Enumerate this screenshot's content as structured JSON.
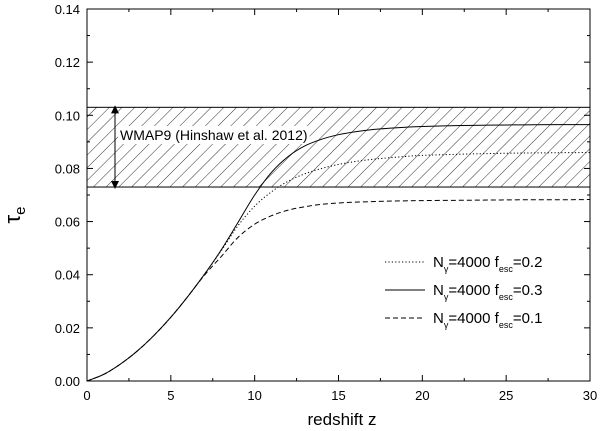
{
  "chart_data": {
    "type": "line",
    "xlabel": "redshift z",
    "ylabel": {
      "main": "τ",
      "sub": "e"
    },
    "xlim": [
      0,
      30
    ],
    "ylim": [
      0,
      0.14
    ],
    "x_ticks": [
      0,
      5,
      10,
      15,
      20,
      25,
      30
    ],
    "x_tick_labels": [
      "0",
      "5",
      "10",
      "15",
      "20",
      "25",
      "30"
    ],
    "y_ticks": [
      0,
      0.02,
      0.04,
      0.06,
      0.08,
      0.1,
      0.12,
      0.14
    ],
    "y_tick_labels": [
      "0.00",
      "0.02",
      "0.04",
      "0.06",
      "0.08",
      "0.10",
      "0.12",
      "0.14"
    ],
    "grid": false,
    "legend_placement": "bottom-right",
    "band": {
      "label": "WMAP9 (Hinshaw et al. 2012)",
      "y_range": [
        0.073,
        0.103
      ]
    },
    "series": [
      {
        "name": {
          "a": "N",
          "a_sub": "γ",
          "b": "=4000 f",
          "b_sub": "esc",
          "c": "=0.2"
        },
        "style": "dotted",
        "x": [
          0,
          1,
          2,
          3,
          4,
          5,
          6,
          7,
          8,
          9,
          10,
          11,
          12,
          13,
          14,
          15,
          16,
          17,
          18,
          19,
          20,
          22,
          24,
          26,
          28,
          30
        ],
        "y": [
          0,
          0.0025,
          0.0064,
          0.0113,
          0.0172,
          0.024,
          0.0317,
          0.0401,
          0.049,
          0.0584,
          0.0658,
          0.0712,
          0.0752,
          0.078,
          0.08,
          0.0815,
          0.0826,
          0.0834,
          0.084,
          0.0845,
          0.0849,
          0.0853,
          0.0856,
          0.0858,
          0.0859,
          0.086
        ]
      },
      {
        "name": {
          "a": "N",
          "a_sub": "γ",
          "b": "=4000 f",
          "b_sub": "esc",
          "c": "=0.3"
        },
        "style": "solid",
        "x": [
          0,
          1,
          2,
          3,
          4,
          5,
          6,
          7,
          8,
          9,
          10,
          11,
          12,
          13,
          14,
          15,
          16,
          17,
          18,
          19,
          20,
          22,
          24,
          26,
          28,
          30
        ],
        "y": [
          0,
          0.0025,
          0.0064,
          0.0113,
          0.0172,
          0.024,
          0.0317,
          0.0401,
          0.0493,
          0.0596,
          0.07,
          0.0785,
          0.0845,
          0.0885,
          0.091,
          0.0927,
          0.0938,
          0.0946,
          0.0951,
          0.0955,
          0.0958,
          0.0961,
          0.0963,
          0.0964,
          0.0965,
          0.0965
        ]
      },
      {
        "name": {
          "a": "N",
          "a_sub": "γ",
          "b": "=4000 f",
          "b_sub": "esc",
          "c": "=0.1"
        },
        "style": "dashed",
        "x": [
          0,
          1,
          2,
          3,
          4,
          5,
          6,
          7,
          8,
          9,
          10,
          11,
          12,
          13,
          14,
          15,
          16,
          17,
          18,
          19,
          20,
          22,
          24,
          26,
          28,
          30
        ],
        "y": [
          0,
          0.0025,
          0.0064,
          0.0113,
          0.0172,
          0.024,
          0.0317,
          0.0398,
          0.0468,
          0.054,
          0.059,
          0.0622,
          0.0643,
          0.0656,
          0.0665,
          0.067,
          0.0673,
          0.0675,
          0.0677,
          0.0678,
          0.0679,
          0.068,
          0.0681,
          0.0682,
          0.0682,
          0.0683
        ]
      }
    ]
  }
}
